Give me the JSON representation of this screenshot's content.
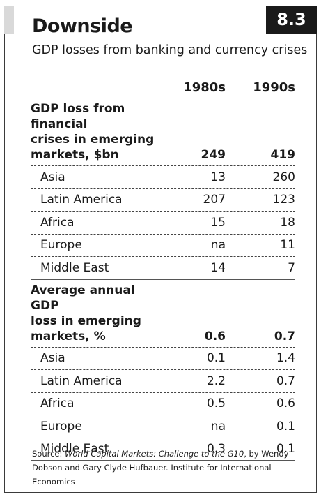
{
  "figure": {
    "number": "8.3",
    "title": "Downside",
    "subtitle": "GDP losses from banking and currency crises"
  },
  "columns": [
    "1980s",
    "1990s"
  ],
  "sections": [
    {
      "label_lines": [
        "GDP loss from financial",
        "crises in emerging",
        "markets, $bn"
      ],
      "total": [
        "249",
        "419"
      ],
      "rows": [
        {
          "region": "Asia",
          "v1": "13",
          "v2": "260"
        },
        {
          "region": "Latin America",
          "v1": "207",
          "v2": "123"
        },
        {
          "region": "Africa",
          "v1": "15",
          "v2": "18"
        },
        {
          "region": "Europe",
          "v1": "na",
          "v2": "11"
        },
        {
          "region": "Middle East",
          "v1": "14",
          "v2": "7"
        }
      ]
    },
    {
      "label_lines": [
        "Average annual GDP",
        "loss in emerging",
        "markets, %"
      ],
      "total": [
        "0.6",
        "0.7"
      ],
      "rows": [
        {
          "region": "Asia",
          "v1": "0.1",
          "v2": "1.4"
        },
        {
          "region": "Latin America",
          "v1": "2.2",
          "v2": "0.7"
        },
        {
          "region": "Africa",
          "v1": "0.5",
          "v2": "0.6"
        },
        {
          "region": "Europe",
          "v1": "na",
          "v2": "0.1"
        },
        {
          "region": "Middle East",
          "v1": "0.3",
          "v2": "0.1"
        }
      ]
    }
  ],
  "source": {
    "prefix": "Source: ",
    "title": "World Capital Markets: Challenge to the G10",
    "suffix": ", by Wendy Dobson and Gary Clyde Hufbauer. Institute for International Economics"
  }
}
